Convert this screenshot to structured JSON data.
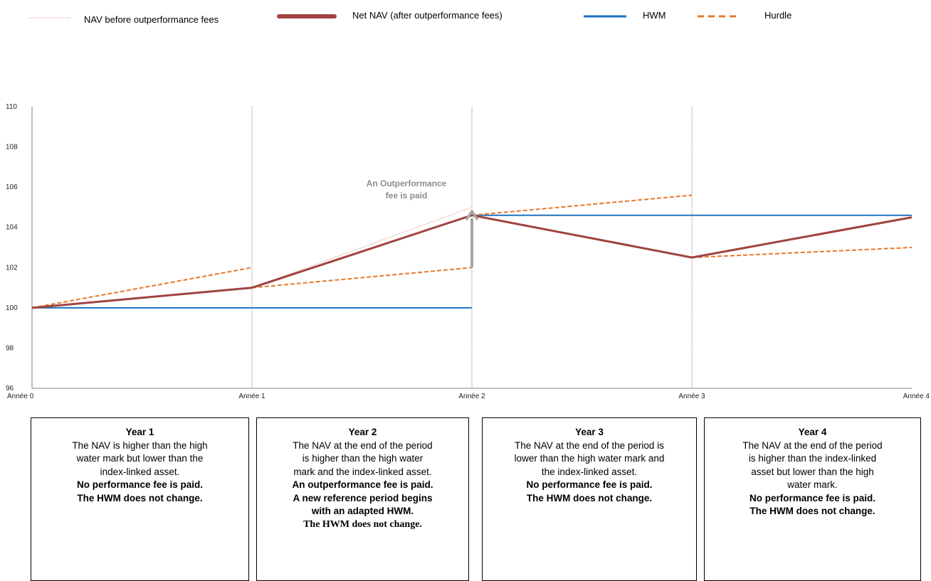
{
  "legend": [
    {
      "label": "NAV before outperformance fees",
      "style": "dotted",
      "color": "#e8a19c"
    },
    {
      "label": "Net NAV (after outperformance fees)",
      "style": "solid-thick",
      "color": "#a04341"
    },
    {
      "label": "HWM",
      "style": "solid",
      "color": "#1f73bf"
    },
    {
      "label": "Hurdle",
      "style": "dashed",
      "color": "#e6782a"
    }
  ],
  "chart_data": {
    "type": "line",
    "categories": [
      "Année 0",
      "Année 1",
      "Année 2",
      "Année 3",
      "Année 4"
    ],
    "ylim": [
      96,
      110
    ],
    "yticks": [
      96,
      98,
      100,
      102,
      104,
      106,
      108,
      110
    ],
    "vertical_gridlines_at": [
      "Année 1",
      "Année 2",
      "Année 3"
    ],
    "series": [
      {
        "name": "NAV before outperformance fees",
        "color": "#e8a19c",
        "segments": [
          [
            [
              0,
              100
            ],
            [
              1,
              101
            ],
            [
              2,
              105
            ]
          ]
        ]
      },
      {
        "name": "Net NAV (after outperformance fees)",
        "color": "#a04341",
        "segments": [
          [
            [
              0,
              100
            ],
            [
              1,
              101
            ],
            [
              2,
              104.6
            ],
            [
              3,
              102.5
            ],
            [
              4,
              104.5
            ]
          ]
        ]
      },
      {
        "name": "HWM",
        "color": "#1f73bf",
        "segments": [
          [
            [
              0,
              100
            ],
            [
              2,
              100
            ]
          ],
          [
            [
              2,
              104.6
            ],
            [
              4,
              104.6
            ]
          ]
        ]
      },
      {
        "name": "Hurdle",
        "color": "#e6782a",
        "segments": [
          [
            [
              0,
              100
            ],
            [
              1,
              102
            ]
          ],
          [
            [
              1,
              101
            ],
            [
              2,
              102
            ]
          ],
          [
            [
              2,
              104.6
            ],
            [
              3,
              105.6
            ]
          ],
          [
            [
              3,
              102.5
            ],
            [
              4,
              103
            ]
          ]
        ]
      }
    ],
    "annotation": {
      "lines": [
        "An Outperformance",
        "fee is paid"
      ],
      "arrow_at": "Année 2",
      "arrow_from": 102,
      "arrow_to": 104.8,
      "color": "#a6a6a6"
    }
  },
  "boxes": [
    {
      "title": "Year 1",
      "normal": [
        "The NAV is higher than the high",
        "water mark but lower than the",
        "index-linked asset."
      ],
      "bold": [
        "No performance fee is paid.",
        "The HWM does not change."
      ],
      "serif": []
    },
    {
      "title": "Year 2",
      "normal": [
        "The NAV at the end of the period",
        "is higher than the high water",
        "mark and the index-linked asset."
      ],
      "bold": [
        "An outperformance fee is paid.",
        "A new reference period begins",
        "with an adapted HWM."
      ],
      "serif": [
        "The HWM does not change."
      ]
    },
    {
      "title": "Year 3",
      "normal": [
        "The NAV at the end of the period is",
        "lower than the high water mark and",
        "the index-linked asset."
      ],
      "bold": [
        "No performance fee is paid.",
        "The HWM does not change."
      ],
      "serif": []
    },
    {
      "title": "Year 4",
      "normal": [
        "The NAV at the end of the period",
        "is higher than the index-linked",
        "asset but lower than the high",
        "water mark."
      ],
      "bold": [
        "No performance fee is paid.",
        "The HWM does not change."
      ],
      "serif": []
    }
  ]
}
